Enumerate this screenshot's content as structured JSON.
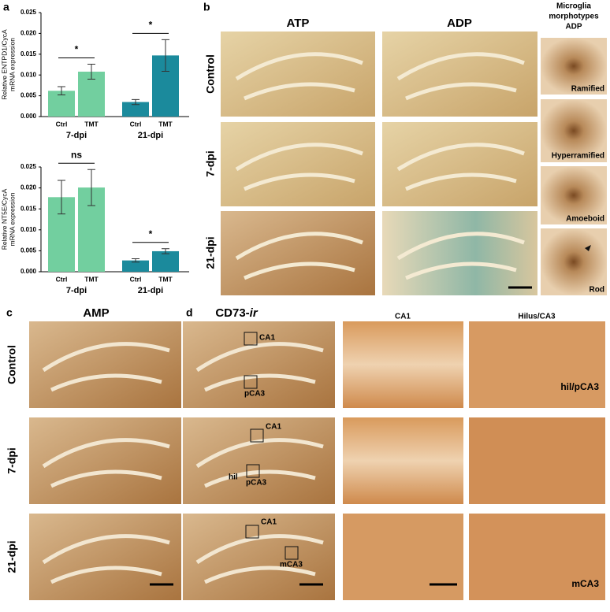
{
  "panel_a": {
    "letter": "a"
  },
  "chart_data": [
    {
      "type": "bar",
      "ylabel": [
        "Relative ENTPD1/CycA",
        "mRNA expression"
      ],
      "categories": [
        "Ctrl",
        "TMT",
        "Ctrl",
        "TMT"
      ],
      "groups": [
        "7-dpi",
        "21-dpi"
      ],
      "values": [
        0.0062,
        0.0108,
        0.0035,
        0.0147
      ],
      "errors": [
        0.001,
        0.0018,
        0.0006,
        0.0038
      ],
      "colors": [
        "#72cf9f",
        "#72cf9f",
        "#1b8a9c",
        "#1b8a9c"
      ],
      "annotations": [
        "*",
        "*"
      ],
      "ylim": [
        0,
        0.025
      ],
      "yticks": [
        {
          "value": 0,
          "label": "0.000"
        },
        {
          "value": 0.005,
          "label": "0.005"
        },
        {
          "value": 0.01,
          "label": "0.010"
        },
        {
          "value": 0.015,
          "label": "0.015"
        },
        {
          "value": 0.02,
          "label": "0.020"
        },
        {
          "value": 0.025,
          "label": "0.025"
        }
      ]
    },
    {
      "type": "bar",
      "ylabel": [
        "Relative NT5E/CycA",
        "mRNA expression"
      ],
      "categories": [
        "Ctrl",
        "TMT",
        "Ctrl",
        "TMT"
      ],
      "groups": [
        "7-dpi",
        "21-dpi"
      ],
      "values": [
        0.0178,
        0.0201,
        0.0027,
        0.0049
      ],
      "errors": [
        0.004,
        0.0043,
        0.0004,
        0.0006
      ],
      "colors": [
        "#72cf9f",
        "#72cf9f",
        "#1b8a9c",
        "#1b8a9c"
      ],
      "annotations": [
        "ns",
        "*"
      ],
      "ylim": [
        0,
        0.025
      ],
      "yticks": [
        {
          "value": 0,
          "label": "0.000"
        },
        {
          "value": 0.005,
          "label": "0.005"
        },
        {
          "value": 0.01,
          "label": "0.010"
        },
        {
          "value": 0.015,
          "label": "0.015"
        },
        {
          "value": 0.02,
          "label": "0.020"
        },
        {
          "value": 0.025,
          "label": "0.025"
        }
      ]
    }
  ],
  "panel_b": {
    "letter": "b",
    "columns": [
      "ATP",
      "ADP"
    ],
    "side_title": [
      "Microglia",
      "morphotypes",
      "ADP"
    ],
    "rows": [
      "Control",
      "7-dpi",
      "21-dpi"
    ],
    "morphotypes": [
      "Ramified",
      "Hyperramified",
      "Amoeboid",
      "Rod"
    ]
  },
  "panel_c": {
    "letter": "c",
    "title": "AMP",
    "rows": [
      "Control",
      "7-dpi",
      "21-dpi"
    ]
  },
  "panel_d": {
    "letter": "d",
    "title": "CD73-",
    "title_italic": "ir",
    "regions": [
      [
        "CA1",
        "pCA3"
      ],
      [
        "CA1",
        "hil",
        "pCA3"
      ],
      [
        "CA1",
        "mCA3"
      ]
    ],
    "columns": [
      "CA1",
      "Hilus/CA3"
    ],
    "zoom_labels": [
      "hil/pCA3",
      "mCA3"
    ]
  }
}
